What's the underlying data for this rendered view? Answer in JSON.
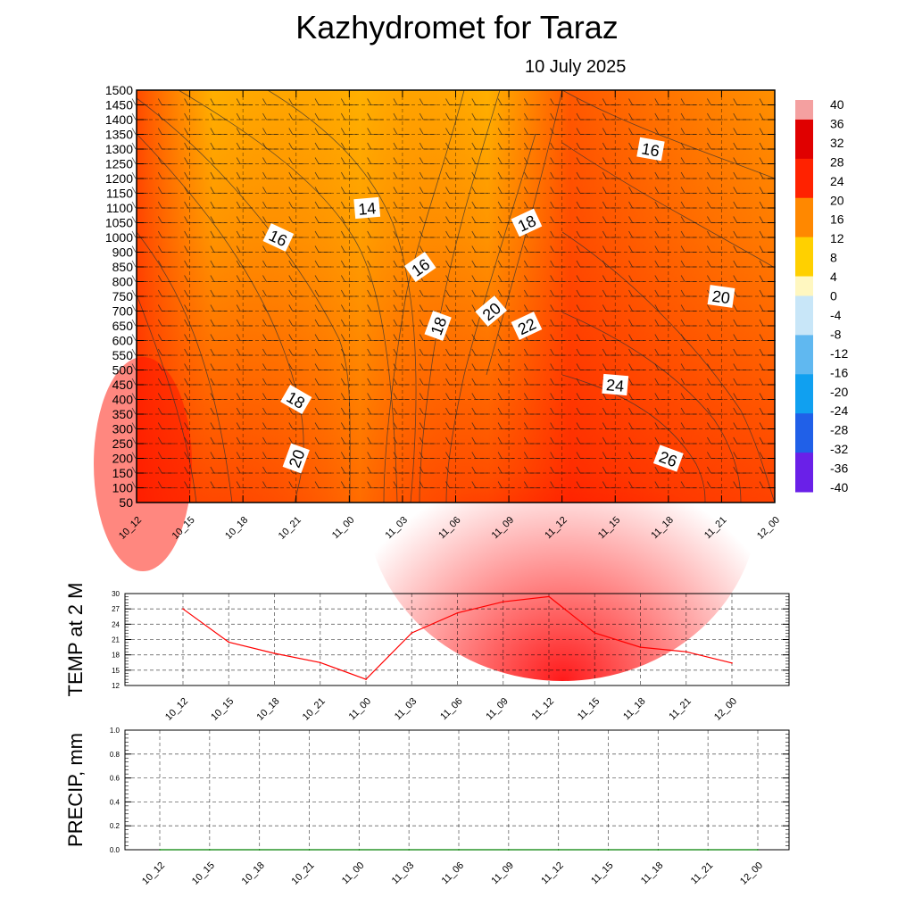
{
  "title": "Kazhydromet  for Taraz",
  "subtitle": "10 July 2025",
  "time_labels": [
    "10_12",
    "10_15",
    "10_18",
    "10_21",
    "11_00",
    "11_03",
    "11_06",
    "11_09",
    "11_12",
    "11_15",
    "11_18",
    "11_21",
    "12_00"
  ],
  "chart_data": [
    {
      "type": "heatmap",
      "title": "Kazhydromet  for Taraz",
      "subtitle": "10 July 2025",
      "y_levels": [
        50,
        100,
        150,
        200,
        250,
        300,
        350,
        400,
        450,
        500,
        550,
        600,
        650,
        700,
        750,
        800,
        850,
        900,
        1000,
        1050,
        1100,
        1150,
        1200,
        1250,
        1300,
        1350,
        1400,
        1450,
        1500
      ],
      "x": [
        "10_12",
        "10_15",
        "10_18",
        "10_21",
        "11_00",
        "11_03",
        "11_06",
        "11_09",
        "11_12",
        "11_15",
        "11_18",
        "11_21",
        "12_00"
      ],
      "colorbar_labels": [
        "40",
        "36",
        "32",
        "28",
        "24",
        "20",
        "16",
        "12",
        "8",
        "4",
        "0",
        "-4",
        "-8",
        "-12",
        "-16",
        "-20",
        "-24",
        "-28",
        "-32",
        "-36",
        "-40"
      ],
      "contour_labels": [
        {
          "text": "14",
          "x": "11_01",
          "y": 1100
        },
        {
          "text": "16",
          "x": "10_20",
          "y": 1000
        },
        {
          "text": "16",
          "x": "11_04",
          "y": 850
        },
        {
          "text": "18",
          "x": "11_10",
          "y": 1050
        },
        {
          "text": "16",
          "x": "11_17",
          "y": 1300
        },
        {
          "text": "20",
          "x": "12_00",
          "y": 750
        },
        {
          "text": "18",
          "x": "11_05",
          "y": 650
        },
        {
          "text": "20",
          "x": "11_08",
          "y": 700
        },
        {
          "text": "22",
          "x": "11_10",
          "y": 650
        },
        {
          "text": "24",
          "x": "11_15",
          "y": 450
        },
        {
          "text": "18",
          "x": "10_21",
          "y": 400
        },
        {
          "text": "20",
          "x": "10_21",
          "y": 200
        },
        {
          "text": "26",
          "x": "11_18",
          "y": 200
        }
      ]
    },
    {
      "type": "line",
      "ylabel": "TEMP at 2 M",
      "x": [
        "10_12",
        "10_15",
        "10_18",
        "10_21",
        "11_00",
        "11_03",
        "11_06",
        "11_09",
        "11_12",
        "11_15",
        "11_18",
        "11_21",
        "12_00"
      ],
      "series": [
        {
          "values": [
            27.0,
            20.5,
            18.3,
            16.5,
            13.2,
            22.3,
            26.2,
            28.4,
            29.4,
            22.3,
            19.5,
            18.6,
            16.4
          ],
          "color": "#ff0000"
        }
      ],
      "ylim": [
        12,
        30
      ],
      "yticks": [
        "12",
        "15",
        "18",
        "21",
        "24",
        "27",
        "30"
      ],
      "grid": true
    },
    {
      "type": "line",
      "ylabel": "PRECIP, mm",
      "x": [
        "10_12",
        "10_15",
        "10_18",
        "10_21",
        "11_00",
        "11_03",
        "11_06",
        "11_09",
        "11_12",
        "11_15",
        "11_18",
        "11_21",
        "12_00"
      ],
      "series": [
        {
          "values": [
            0,
            0,
            0,
            0,
            0,
            0,
            0,
            0,
            0,
            0,
            0,
            0,
            0
          ],
          "color": "#008000"
        }
      ],
      "ylim": [
        0,
        1
      ],
      "yticks": [
        "0.0",
        "0.2",
        "0.4",
        "0.6",
        "0.8",
        "1.0"
      ],
      "grid": true
    }
  ]
}
